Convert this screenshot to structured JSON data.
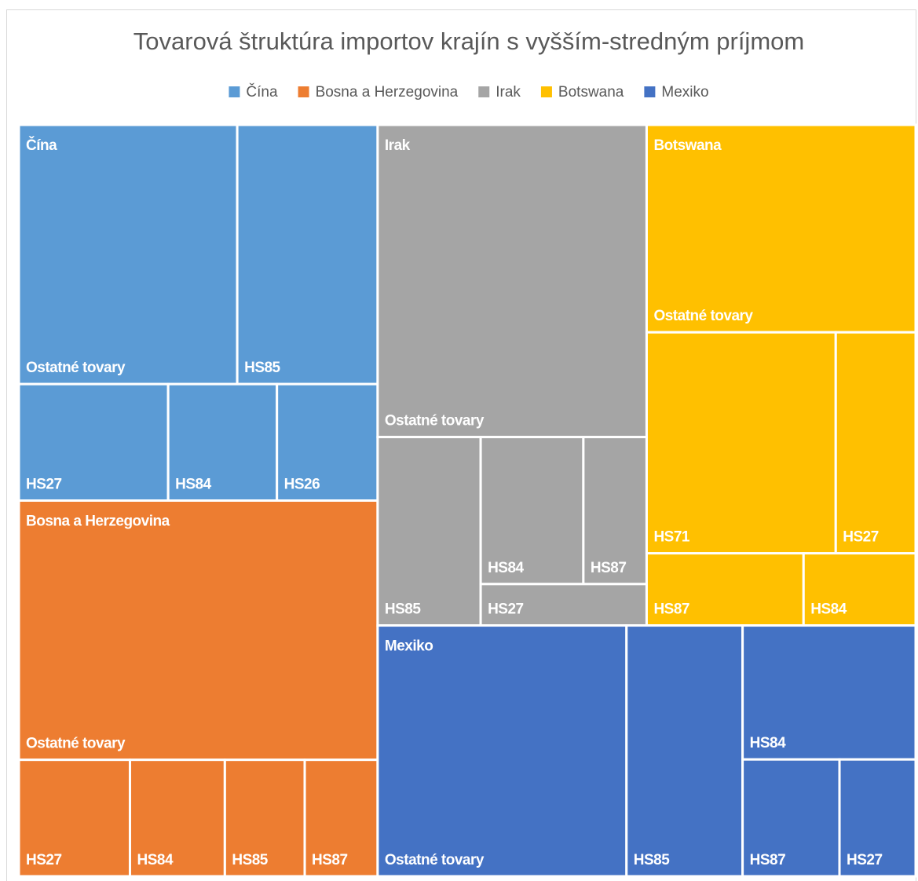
{
  "chart_data": {
    "type": "treemap",
    "title": "Tovarová štruktúra importov krajín s vyšším-stredným príjmom",
    "legend": "top",
    "series": [
      {
        "name": "Čína",
        "color": "#5b9bd5",
        "categories": [
          "Ostatné tovary",
          "HS85",
          "HS27",
          "HS84",
          "HS26"
        ],
        "values": [
          42,
          27,
          12.9,
          9.4,
          8.7
        ]
      },
      {
        "name": "Bosna a Herzegovina",
        "color": "#ed7d31",
        "categories": [
          "Ostatné tovary",
          "HS27",
          "HS84",
          "HS85",
          "HS87"
        ],
        "values": [
          69,
          9.6,
          8.2,
          6.9,
          6.3
        ]
      },
      {
        "name": "Irak",
        "color": "#a5a5a5",
        "categories": [
          "Ostatné tovary",
          "HS85",
          "HS84",
          "HS87",
          "HS27"
        ],
        "values": [
          62.3,
          14.4,
          11.2,
          6.9,
          5.1
        ]
      },
      {
        "name": "Botswana",
        "color": "#ffc000",
        "categories": [
          "Ostatné tovary",
          "HS71",
          "HS27",
          "HS87",
          "HS84"
        ],
        "values": [
          41.4,
          31,
          13.1,
          8.4,
          6
        ]
      },
      {
        "name": "Mexiko",
        "color": "#4472c4",
        "categories": [
          "Ostatné tovary",
          "HS85",
          "HS84",
          "HS87",
          "HS27"
        ],
        "values": [
          46.3,
          21.6,
          17.2,
          8.4,
          6.6
        ]
      }
    ]
  }
}
